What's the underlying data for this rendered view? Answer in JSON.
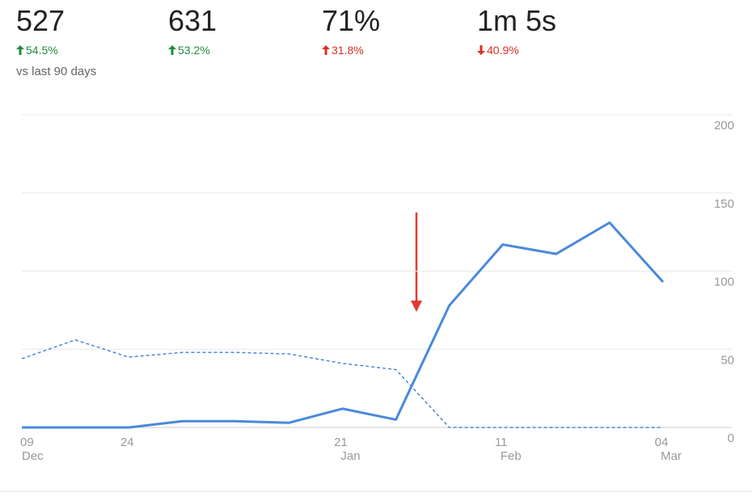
{
  "metrics": [
    {
      "value": "527",
      "change": "54.5%",
      "trend": "up",
      "color": "#1e8e3e"
    },
    {
      "value": "631",
      "change": "53.2%",
      "trend": "up",
      "color": "#1e8e3e"
    },
    {
      "value": "71%",
      "change": "31.8%",
      "trend": "up",
      "color": "#d93025"
    },
    {
      "value": "1m 5s",
      "change": "40.9%",
      "trend": "down",
      "color": "#d93025"
    }
  ],
  "comparison": "vs last 90 days",
  "chart_data": {
    "type": "line",
    "categories": [
      "09",
      null,
      "24",
      null,
      null,
      null,
      "21",
      null,
      null,
      "11",
      null,
      null,
      "04"
    ],
    "category_months": [
      "Dec",
      null,
      null,
      null,
      null,
      null,
      "Jan",
      null,
      null,
      "Feb",
      null,
      null,
      "Mar"
    ],
    "series": [
      {
        "color": "#4a89dc",
        "style": "solid",
        "values": [
          0,
          0,
          0,
          4,
          4,
          3,
          12,
          5,
          78,
          117,
          111,
          131,
          93
        ]
      },
      {
        "color": "#4a89dc",
        "style": "dashed",
        "values": [
          44,
          56,
          45,
          48,
          48,
          47,
          41,
          37,
          0,
          0,
          0,
          0,
          0
        ]
      }
    ],
    "ylim": [
      0,
      200
    ],
    "yticks": [
      0,
      50,
      100,
      150,
      200
    ],
    "grid": true
  }
}
